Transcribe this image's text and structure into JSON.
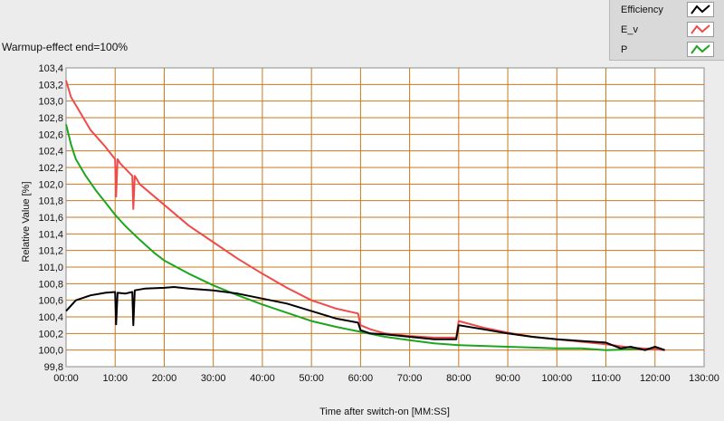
{
  "chart_data": {
    "type": "line",
    "title": "Warmup-effect end=100%",
    "xlabel": "Time after switch-on [MM:SS]",
    "ylabel": "Relative Value [%]",
    "xlim": [
      0,
      130
    ],
    "ylim": [
      99.8,
      103.4
    ],
    "x_ticks": [
      0,
      10,
      20,
      30,
      40,
      50,
      60,
      70,
      80,
      90,
      100,
      110,
      120,
      130
    ],
    "x_tick_labels": [
      "00:00",
      "10:00",
      "20:00",
      "30:00",
      "40:00",
      "50:00",
      "60:00",
      "70:00",
      "80:00",
      "90:00",
      "100:00",
      "110:00",
      "120:00",
      "130:00"
    ],
    "y_ticks": [
      99.8,
      100.0,
      100.2,
      100.4,
      100.6,
      100.8,
      101.0,
      101.2,
      101.4,
      101.6,
      101.8,
      102.0,
      102.2,
      102.4,
      102.6,
      102.8,
      103.0,
      103.2,
      103.4
    ],
    "y_tick_labels": [
      "99,8",
      "100,0",
      "100,2",
      "100,4",
      "100,6",
      "100,8",
      "101,0",
      "101,2",
      "101,4",
      "101,6",
      "101,8",
      "102,0",
      "102,2",
      "102,4",
      "102,6",
      "102,8",
      "103,0",
      "103,2",
      "103,4"
    ],
    "grid": true,
    "legend_position": "top-right",
    "series": [
      {
        "name": "Efficiency",
        "color": "#000000",
        "x": [
          0,
          2,
          5,
          8,
          10,
          10.2,
          10.5,
          12,
          13.5,
          13.7,
          14,
          16,
          20,
          22,
          25,
          30,
          35,
          40,
          45,
          50,
          55,
          59.5,
          60,
          62,
          65,
          70,
          75,
          79.5,
          80,
          85,
          90,
          95,
          100,
          105,
          110,
          113,
          115,
          118,
          120,
          122
        ],
        "y": [
          100.47,
          100.6,
          100.66,
          100.69,
          100.7,
          100.31,
          100.69,
          100.68,
          100.7,
          100.3,
          100.72,
          100.74,
          100.75,
          100.76,
          100.74,
          100.72,
          100.68,
          100.62,
          100.56,
          100.47,
          100.38,
          100.33,
          100.24,
          100.2,
          100.19,
          100.16,
          100.13,
          100.13,
          100.3,
          100.25,
          100.2,
          100.16,
          100.13,
          100.11,
          100.09,
          100.02,
          100.04,
          100.0,
          100.04,
          100.0
        ]
      },
      {
        "name": "E_v",
        "color": "#ef4b4b",
        "x": [
          0,
          1,
          3,
          5,
          8,
          10,
          10.2,
          10.5,
          11,
          13.5,
          13.7,
          14,
          15,
          20,
          25,
          30,
          35,
          40,
          45,
          50,
          55,
          59.5,
          60,
          62,
          65,
          70,
          75,
          79.5,
          80,
          85,
          90,
          95,
          100,
          105,
          110,
          115,
          120,
          122
        ],
        "y": [
          103.25,
          103.05,
          102.85,
          102.65,
          102.45,
          102.3,
          101.85,
          102.3,
          102.25,
          102.1,
          101.7,
          102.1,
          102.0,
          101.75,
          101.5,
          101.3,
          101.1,
          100.92,
          100.75,
          100.6,
          100.5,
          100.44,
          100.3,
          100.25,
          100.2,
          100.17,
          100.15,
          100.15,
          100.35,
          100.27,
          100.21,
          100.16,
          100.13,
          100.1,
          100.07,
          100.03,
          100.01,
          100.0
        ]
      },
      {
        "name": "P",
        "color": "#1ea51e",
        "x": [
          0,
          1,
          2,
          4,
          6,
          8,
          10,
          12,
          15,
          18,
          20,
          25,
          30,
          35,
          40,
          45,
          50,
          55,
          60,
          65,
          70,
          75,
          80,
          85,
          90,
          95,
          100,
          105,
          110,
          115,
          120,
          122
        ],
        "y": [
          102.72,
          102.48,
          102.3,
          102.1,
          101.93,
          101.78,
          101.63,
          101.5,
          101.33,
          101.17,
          101.08,
          100.92,
          100.78,
          100.66,
          100.55,
          100.45,
          100.35,
          100.28,
          100.22,
          100.16,
          100.12,
          100.08,
          100.06,
          100.05,
          100.04,
          100.03,
          100.02,
          100.02,
          100.0,
          100.01,
          100.02,
          100.0
        ]
      }
    ]
  }
}
